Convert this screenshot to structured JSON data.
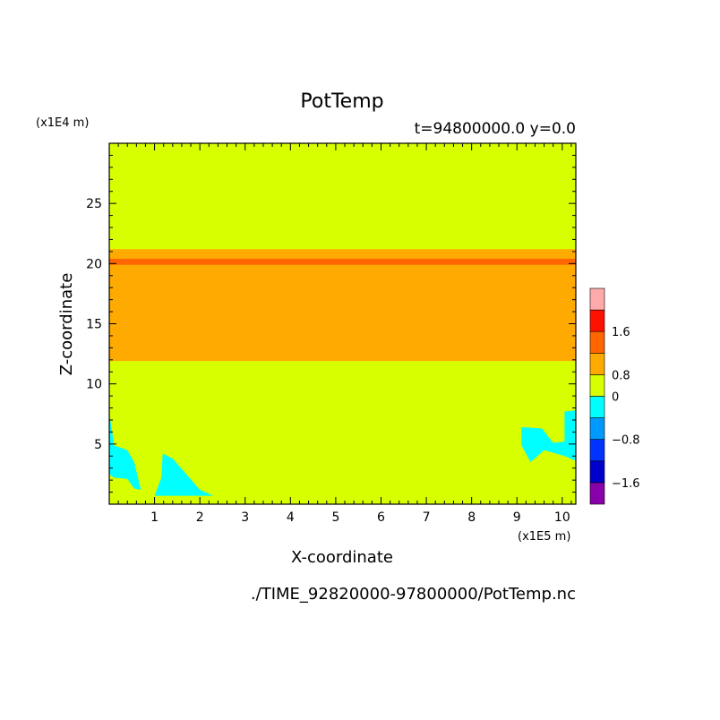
{
  "chart_data": {
    "type": "heatmap",
    "title": "PotTemp",
    "subtitle": "t=94800000.0 y=0.0",
    "xlabel": "X-coordinate",
    "ylabel": "Z-coordinate",
    "x_unit": "(x1E5 m)",
    "y_unit": "(x1E4 m)",
    "source_file": "./TIME_92820000-97800000/PotTemp.nc",
    "xlim": [
      0,
      10.3
    ],
    "ylim": [
      0,
      30
    ],
    "x_ticks": [
      1,
      2,
      3,
      4,
      5,
      6,
      7,
      8,
      9,
      10
    ],
    "y_ticks": [
      5,
      10,
      15,
      20,
      25
    ],
    "colorbar": {
      "levels": [
        -2.0,
        -1.6,
        -1.2,
        -0.8,
        -0.4,
        0,
        0.8,
        1.2,
        1.6,
        2.0
      ],
      "colors": [
        "#8800aa",
        "#0000cc",
        "#0033ff",
        "#0099ff",
        "#00ffff",
        "#d7ff00",
        "#ffaa00",
        "#ff6600",
        "#ff1100",
        "#ffaaaa"
      ],
      "labels": [
        {
          "text": "1.6",
          "value": 1.6
        },
        {
          "text": "0.8",
          "value": 0.8
        },
        {
          "text": "0",
          "value": 0
        },
        {
          "text": "−0.8",
          "value": -0.8
        },
        {
          "text": "−1.6",
          "value": -1.6
        }
      ]
    },
    "background_band": {
      "range": [
        0,
        0.8
      ],
      "color": "#d7ff00"
    },
    "bands": [
      {
        "name": "warm layer",
        "z_bottom": 11.9,
        "z_top": 21.2,
        "range": [
          0,
          0.8
        ],
        "color": "#ffaa00"
      },
      {
        "name": "inversion line",
        "z_bottom": 19.9,
        "z_top": 20.4,
        "range": [
          0.8,
          1.2
        ],
        "color": "#ff6600"
      }
    ],
    "cold_regions": [
      {
        "range": [
          -0.4,
          0
        ],
        "color": "#00ffff",
        "points": [
          [
            0,
            7.5
          ],
          [
            0.06,
            6.2
          ],
          [
            0.1,
            4.9
          ],
          [
            0.4,
            4.5
          ],
          [
            0.55,
            3.5
          ],
          [
            0.7,
            1.2
          ],
          [
            0.55,
            1.3
          ],
          [
            0.4,
            2.1
          ],
          [
            0.1,
            2.2
          ],
          [
            0,
            2.5
          ]
        ]
      },
      {
        "range": [
          -0.4,
          0
        ],
        "color": "#00ffff",
        "points": [
          [
            1.0,
            0.7
          ],
          [
            1.15,
            2.2
          ],
          [
            1.18,
            4.2
          ],
          [
            1.4,
            3.8
          ],
          [
            1.7,
            2.5
          ],
          [
            2.0,
            1.2
          ],
          [
            2.3,
            0.7
          ]
        ]
      },
      {
        "range": [
          -0.4,
          0
        ],
        "color": "#00ffff",
        "points": [
          [
            9.1,
            6.4
          ],
          [
            9.55,
            6.3
          ],
          [
            9.8,
            5.1
          ],
          [
            10.05,
            5.2
          ],
          [
            10.05,
            7.7
          ],
          [
            10.3,
            7.8
          ],
          [
            10.3,
            3.6
          ],
          [
            10.05,
            4.0
          ],
          [
            9.6,
            4.5
          ],
          [
            9.3,
            3.5
          ],
          [
            9.1,
            4.9
          ]
        ]
      }
    ]
  }
}
